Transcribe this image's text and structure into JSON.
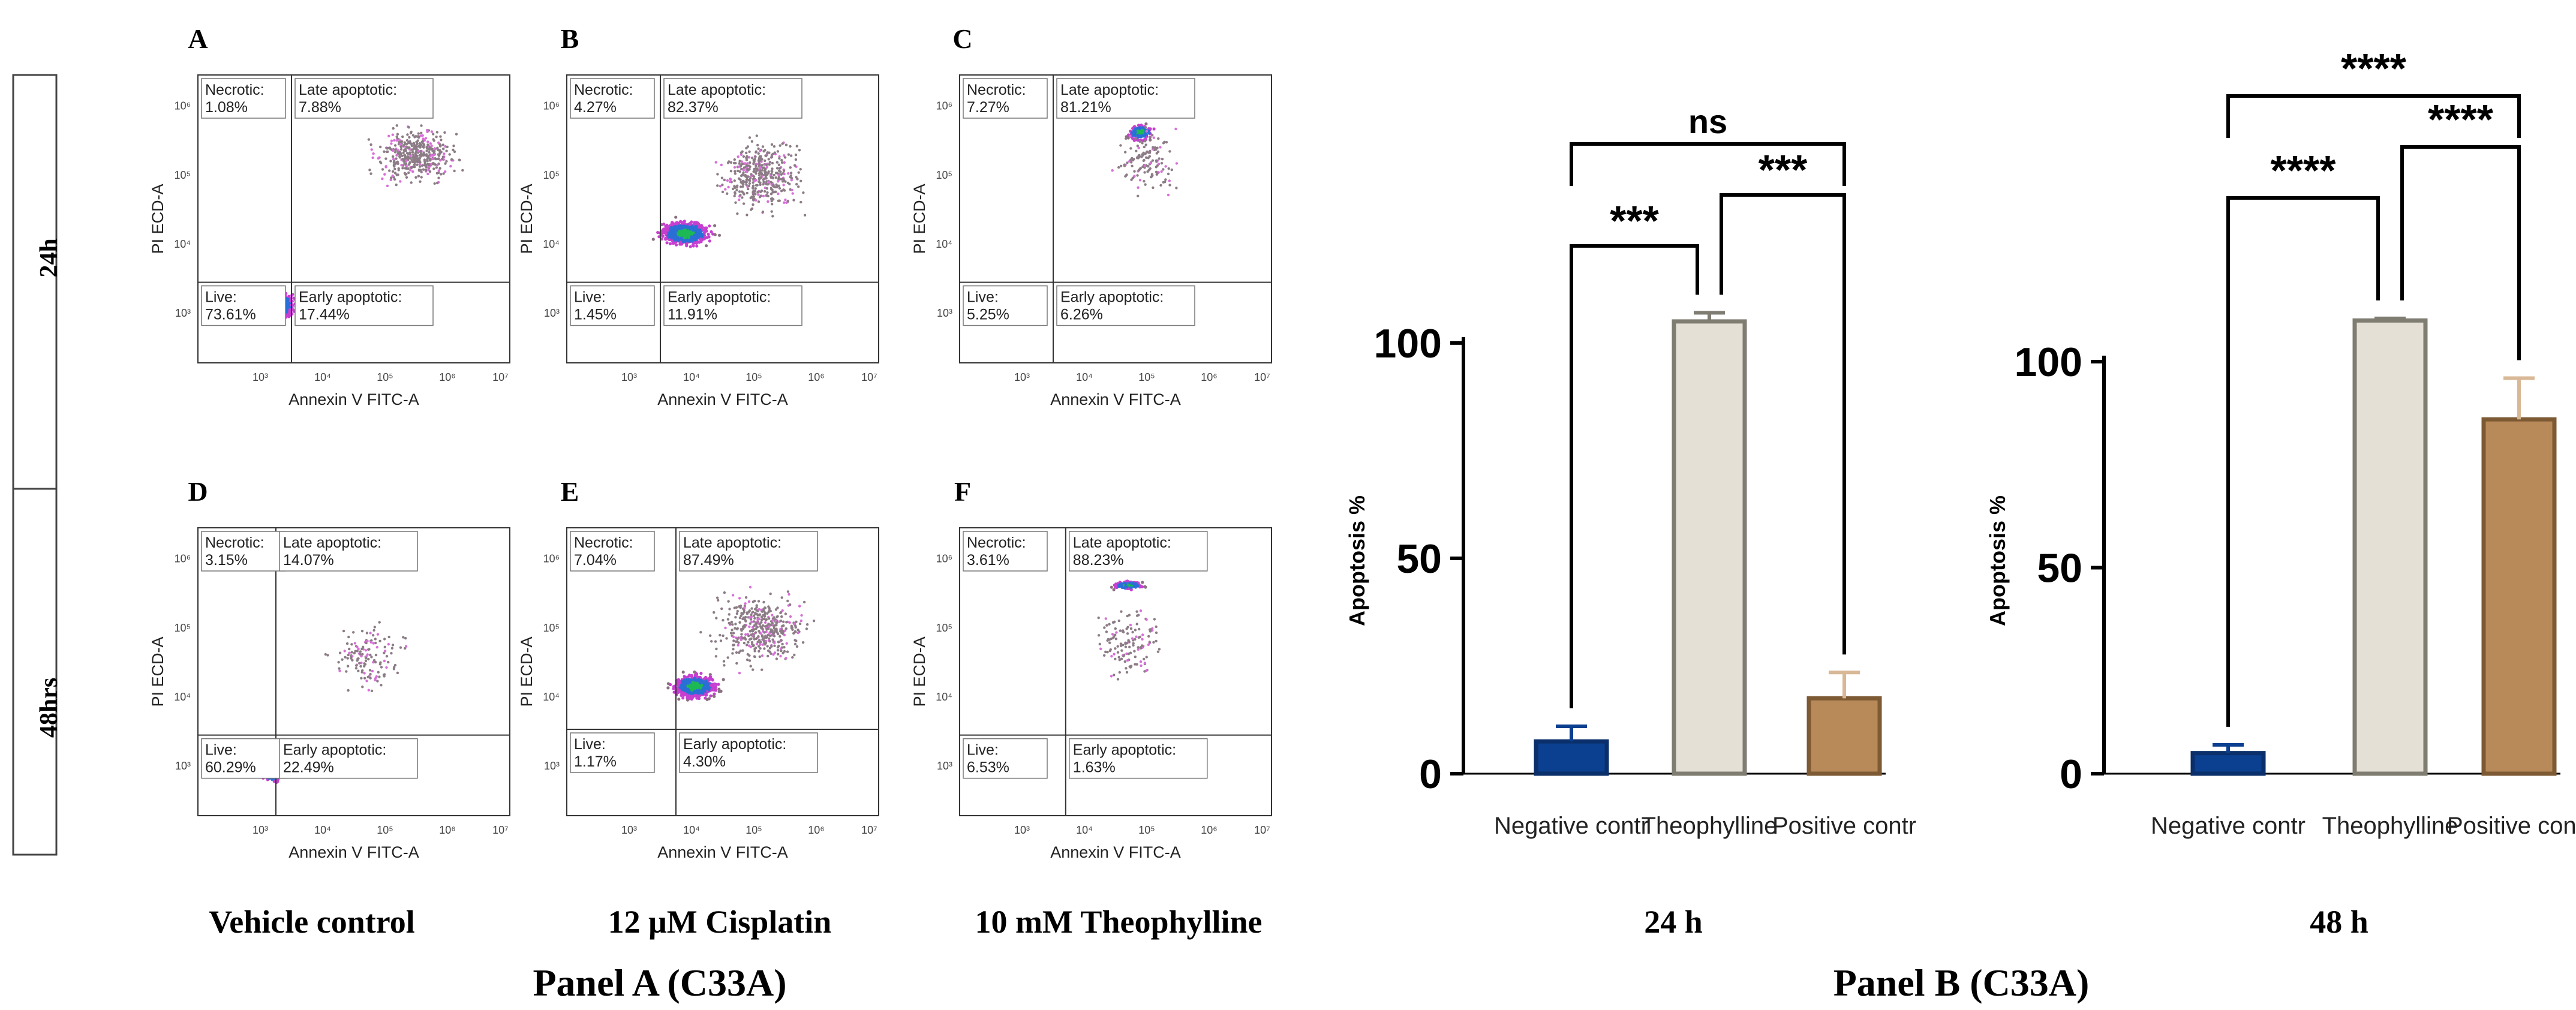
{
  "panel_a": {
    "title": "Panel A (C33A)",
    "row_labels": [
      "24h",
      "48hrs"
    ],
    "conditions": [
      "Vehicle control",
      "12 μM Cisplatin",
      "10 mM Theophylline"
    ],
    "x_axis_label": "Annexin V FITC-A",
    "y_axis_label": "PI ECD-A",
    "plots": [
      {
        "letter": "A",
        "necrotic": "1.08%",
        "late": "7.88%",
        "live": "73.61%",
        "early": "17.44%"
      },
      {
        "letter": "B",
        "necrotic": "4.27%",
        "late": "82.37%",
        "live": "1.45%",
        "early": "11.91%"
      },
      {
        "letter": "C",
        "necrotic": "7.27%",
        "late": "81.21%",
        "live": "5.25%",
        "early": "6.26%"
      },
      {
        "letter": "D",
        "necrotic": "3.15%",
        "late": "14.07%",
        "live": "60.29%",
        "early": "22.49%"
      },
      {
        "letter": "E",
        "necrotic": "7.04%",
        "late": "87.49%",
        "live": "1.17%",
        "early": "4.30%"
      },
      {
        "letter": "F",
        "necrotic": "3.61%",
        "late": "88.23%",
        "live": "6.53%",
        "early": "1.63%"
      }
    ],
    "quadrant_names": {
      "necrotic": "Necrotic:",
      "late": "Late apoptotic:",
      "live": "Live:",
      "early": "Early apoptotic:"
    }
  },
  "panel_b": {
    "title": "Panel B (C33A)"
  },
  "colors": {
    "negative": "#0b3f8f",
    "theophylline": "#e4e0d6",
    "positive": "#b88a5a",
    "error": "#d8b896"
  },
  "chart_data": [
    {
      "type": "bar",
      "title": "24 h",
      "xlabel": "",
      "ylabel": "Apoptosis %",
      "categories": [
        "Negative contr",
        "Theophylline",
        "Positive contr"
      ],
      "values": [
        7.5,
        105,
        17.5
      ],
      "errors": [
        3.5,
        2,
        6
      ],
      "ylim": [
        0,
        110
      ],
      "yticks": [
        0,
        50,
        100
      ],
      "significance": [
        {
          "from": 0,
          "to": 1,
          "label": "***"
        },
        {
          "from": 1,
          "to": 2,
          "label": "***"
        },
        {
          "from": 0,
          "to": 2,
          "label": "ns"
        }
      ]
    },
    {
      "type": "bar",
      "title": "48 h",
      "xlabel": "",
      "ylabel": "Apoptosis %",
      "categories": [
        "Negative contr",
        "Theophylline",
        "Positive contr"
      ],
      "values": [
        5,
        110,
        86
      ],
      "errors": [
        2,
        0.5,
        10
      ],
      "ylim": [
        0,
        115
      ],
      "yticks": [
        0,
        50,
        100
      ],
      "significance": [
        {
          "from": 0,
          "to": 1,
          "label": "****"
        },
        {
          "from": 1,
          "to": 2,
          "label": "****"
        },
        {
          "from": 0,
          "to": 2,
          "label": "****"
        }
      ]
    }
  ]
}
